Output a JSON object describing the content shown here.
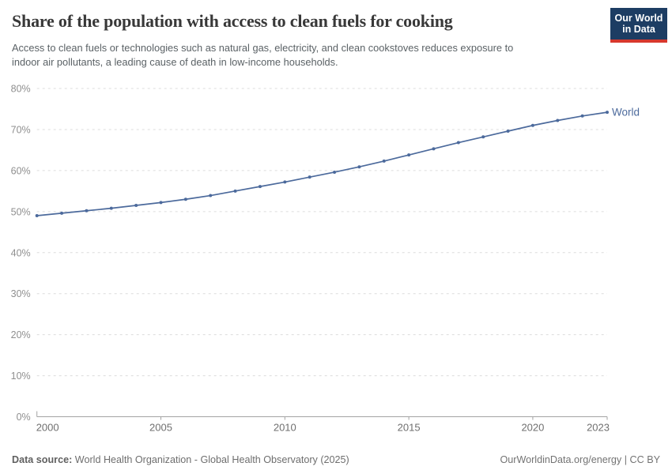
{
  "header": {
    "title": "Share of the population with access to clean fuels for cooking",
    "subtitle_line1": "Access to clean fuels or technologies such as natural gas, electricity, and clean cookstoves reduces exposure to",
    "subtitle_line2": "indoor air pollutants, a leading cause of death in low-income households.",
    "logo": {
      "line1": "Our World",
      "line2": "in Data",
      "bg_color": "#1d3d63",
      "accent_color": "#d7382d"
    }
  },
  "chart_data": {
    "type": "line",
    "title": "Share of the population with access to clean fuels for cooking",
    "x": [
      2000,
      2001,
      2002,
      2003,
      2004,
      2005,
      2006,
      2007,
      2008,
      2009,
      2010,
      2011,
      2012,
      2013,
      2014,
      2015,
      2016,
      2017,
      2018,
      2019,
      2020,
      2021,
      2022,
      2023
    ],
    "series": [
      {
        "name": "World",
        "color": "#4C6A9C",
        "values": [
          49.0,
          49.6,
          50.2,
          50.8,
          51.5,
          52.2,
          53.0,
          53.9,
          55.0,
          56.1,
          57.2,
          58.4,
          59.6,
          60.9,
          62.3,
          63.8,
          65.3,
          66.8,
          68.2,
          69.6,
          71.0,
          72.2,
          73.3,
          74.2
        ]
      }
    ],
    "xlabel": "",
    "ylabel": "",
    "ylim": [
      0,
      80
    ],
    "ytick_step": 10,
    "ytick_suffix": "%",
    "xticks": [
      2000,
      2005,
      2010,
      2015,
      2020,
      2023
    ],
    "grid": "horizontal-dashed",
    "legend": "end-of-line-label",
    "colors": {
      "gridline": "#dcdcdc",
      "axis": "#a3a3a3",
      "ytick_label": "#8f8f8f",
      "xtick_label": "#6f6f6f"
    }
  },
  "footer": {
    "source_label": "Data source:",
    "source_text": " World Health Organization - Global Health Observatory (2025)",
    "link_text": "OurWorldinData.org/energy",
    "separator": " | ",
    "license_text": "CC BY"
  }
}
